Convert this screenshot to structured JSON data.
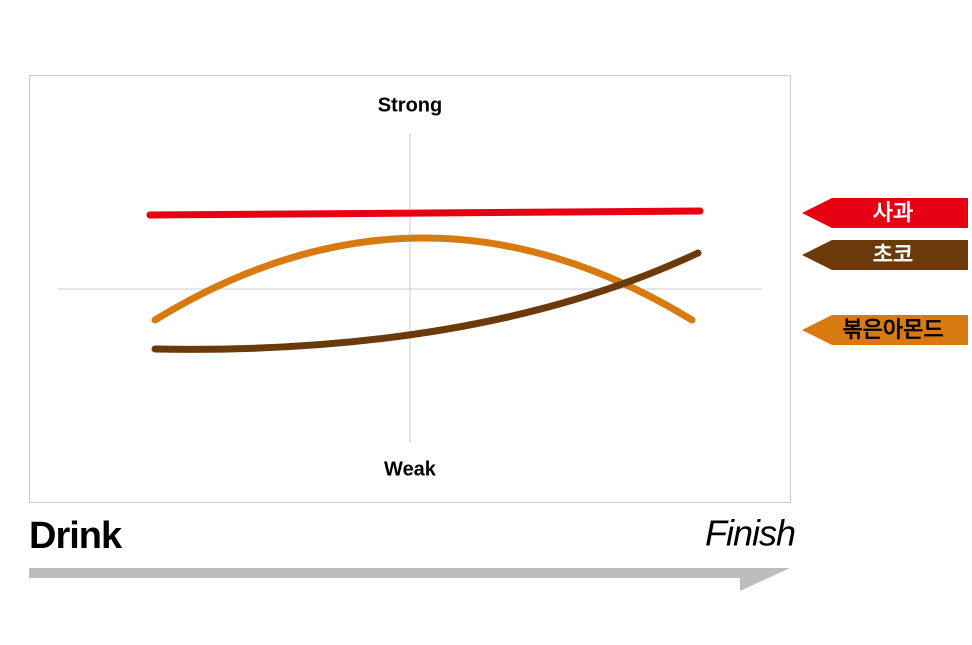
{
  "axis": {
    "top": "Strong",
    "bottom": "Weak"
  },
  "timeline": {
    "start": "Drink",
    "end": "Finish"
  },
  "legend": [
    {
      "label": "사과",
      "color": "#e60012"
    },
    {
      "label": "초코",
      "color": "#6b3a0a"
    },
    {
      "label": "볶은아몬드",
      "color": "#d97a10"
    }
  ]
}
